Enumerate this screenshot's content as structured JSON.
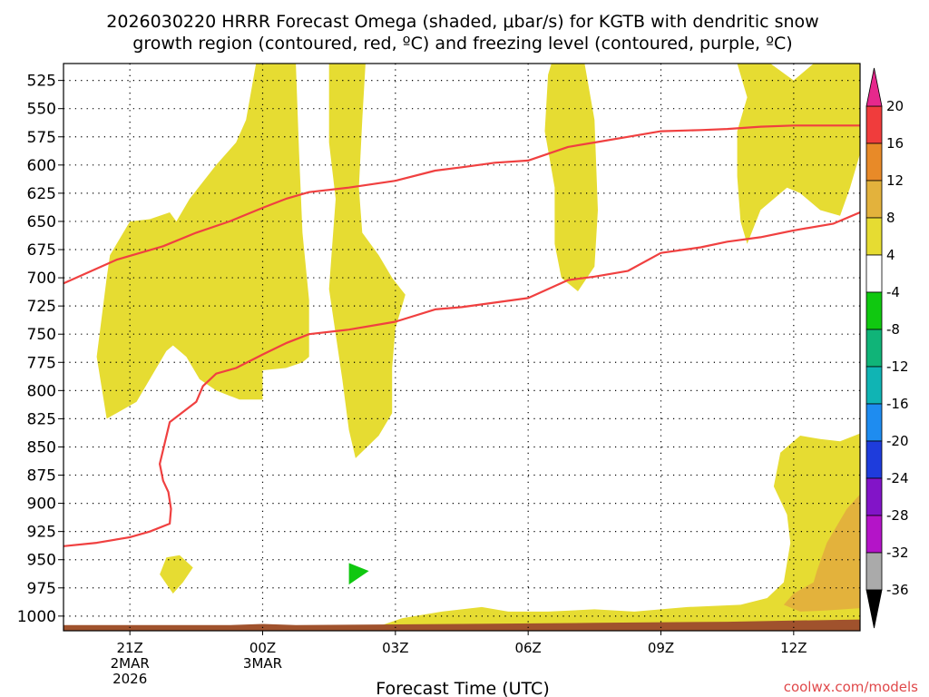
{
  "chart_data": {
    "type": "heatmap",
    "title_lines": [
      "2026030220 HRRR Forecast Omega (shaded, μbar/s) for KGTB with dendritic snow",
      "growth region (contoured, red, ºC) and freezing level (contoured, purple, ºC)"
    ],
    "xlabel": "Forecast Time (UTC)",
    "ylabel": "",
    "credit": "coolwx.com/models",
    "x_domain_hours": [
      -1.0,
      11.0
    ],
    "x_ticks": [
      {
        "hour": 0,
        "lines": [
          "21Z",
          "2MAR",
          "2026"
        ]
      },
      {
        "hour": 2,
        "lines": [
          "00Z",
          "3MAR"
        ]
      },
      {
        "hour": 4,
        "lines": [
          "03Z"
        ]
      },
      {
        "hour": 6,
        "lines": [
          "06Z"
        ]
      },
      {
        "hour": 8,
        "lines": [
          "09Z"
        ]
      },
      {
        "hour": 10,
        "lines": [
          "12Z"
        ]
      }
    ],
    "y_domain_hpa": [
      510,
      1013
    ],
    "y_ticks": [
      525,
      550,
      575,
      600,
      625,
      650,
      675,
      700,
      725,
      750,
      775,
      800,
      825,
      850,
      875,
      900,
      925,
      950,
      975,
      1000
    ],
    "grid": true,
    "colorbar": {
      "placement": "right",
      "labels": [
        "20",
        "16",
        "12",
        "8",
        "4",
        "-4",
        "-8",
        "-12",
        "-16",
        "-20",
        "-24",
        "-28",
        "-32",
        "-36"
      ],
      "bins": [
        {
          "from": 16,
          "to": 20,
          "color": "#f03c3c"
        },
        {
          "from": 12,
          "to": 16,
          "color": "#e88a28"
        },
        {
          "from": 8,
          "to": 12,
          "color": "#e3b23c"
        },
        {
          "from": 4,
          "to": 8,
          "color": "#e6dc32"
        },
        {
          "from": -4,
          "to": 4,
          "color": "#ffffff"
        },
        {
          "from": -8,
          "to": -4,
          "color": "#10c810"
        },
        {
          "from": -12,
          "to": -8,
          "color": "#10b478"
        },
        {
          "from": -16,
          "to": -12,
          "color": "#10b4b4"
        },
        {
          "from": -20,
          "to": -16,
          "color": "#1e8cf0"
        },
        {
          "from": -24,
          "to": -20,
          "color": "#1e3cdc"
        },
        {
          "from": -28,
          "to": -24,
          "color": "#8214c8"
        },
        {
          "from": -32,
          "to": -28,
          "color": "#b414c8"
        },
        {
          "from": -36,
          "to": -32,
          "color": "#aaaaaa"
        }
      ],
      "top_extend_color": "#e6288c",
      "bottom_extend_color": "#000000"
    },
    "series": [
      {
        "kind": "contour-line",
        "color": "#f04040",
        "points": [
          [
            -1.0,
            705
          ],
          [
            -0.2,
            684
          ],
          [
            0.5,
            672
          ],
          [
            1.0,
            660
          ],
          [
            1.5,
            650
          ],
          [
            2.0,
            638
          ],
          [
            2.35,
            630
          ],
          [
            2.7,
            624
          ],
          [
            3.3,
            620
          ],
          [
            4.0,
            614
          ],
          [
            4.6,
            605
          ],
          [
            5.0,
            602
          ],
          [
            5.5,
            598
          ],
          [
            6.0,
            596
          ],
          [
            6.6,
            584
          ],
          [
            7.0,
            580
          ],
          [
            7.5,
            575
          ],
          [
            8.0,
            570
          ],
          [
            8.6,
            569
          ],
          [
            9.0,
            568
          ],
          [
            9.5,
            566
          ],
          [
            10.0,
            565
          ],
          [
            10.6,
            565
          ],
          [
            11.0,
            565
          ]
        ]
      },
      {
        "kind": "contour-line",
        "color": "#f04040",
        "points": [
          [
            -1.0,
            938
          ],
          [
            -0.5,
            935
          ],
          [
            0.0,
            930
          ],
          [
            0.3,
            925
          ],
          [
            0.6,
            918
          ],
          [
            0.62,
            905
          ],
          [
            0.58,
            890
          ],
          [
            0.5,
            880
          ],
          [
            0.45,
            865
          ],
          [
            0.6,
            828
          ],
          [
            1.0,
            810
          ],
          [
            1.1,
            796
          ],
          [
            1.3,
            785
          ],
          [
            1.6,
            780
          ],
          [
            2.0,
            768
          ],
          [
            2.35,
            758
          ],
          [
            2.7,
            750
          ],
          [
            3.3,
            746
          ],
          [
            4.0,
            739
          ],
          [
            4.6,
            728
          ],
          [
            5.0,
            726
          ],
          [
            5.5,
            722
          ],
          [
            6.0,
            718
          ],
          [
            6.6,
            702
          ],
          [
            7.0,
            699
          ],
          [
            7.5,
            694
          ],
          [
            8.0,
            678
          ],
          [
            8.6,
            673
          ],
          [
            9.0,
            668
          ],
          [
            9.5,
            664
          ],
          [
            10.0,
            658
          ],
          [
            10.6,
            652
          ],
          [
            11.0,
            642
          ]
        ]
      }
    ],
    "regions": [
      {
        "omega_bin": "4 to 8",
        "color": "#e6dc32",
        "points": [
          [
            -0.35,
            825
          ],
          [
            -0.5,
            770
          ],
          [
            -0.35,
            700
          ],
          [
            -0.3,
            680
          ],
          [
            -0.0,
            650
          ],
          [
            0.3,
            648
          ],
          [
            0.6,
            642
          ],
          [
            0.7,
            650
          ],
          [
            0.9,
            630
          ],
          [
            1.3,
            600
          ],
          [
            1.6,
            580
          ],
          [
            1.75,
            560
          ],
          [
            1.9,
            505
          ],
          [
            2.5,
            505
          ],
          [
            2.55,
            590
          ],
          [
            2.6,
            660
          ],
          [
            2.7,
            720
          ],
          [
            2.7,
            770
          ],
          [
            2.6,
            775
          ],
          [
            2.35,
            780
          ],
          [
            2.0,
            782
          ],
          [
            2.0,
            808
          ],
          [
            1.65,
            808
          ],
          [
            1.3,
            800
          ],
          [
            1.05,
            790
          ],
          [
            0.85,
            770
          ],
          [
            0.65,
            760
          ],
          [
            0.55,
            765
          ],
          [
            0.3,
            790
          ],
          [
            0.1,
            810
          ]
        ]
      },
      {
        "omega_bin": "4 to 8",
        "color": "#e6dc32",
        "points": [
          [
            3.0,
            505
          ],
          [
            3.55,
            505
          ],
          [
            3.5,
            560
          ],
          [
            3.45,
            620
          ],
          [
            3.5,
            660
          ],
          [
            3.75,
            680
          ],
          [
            3.95,
            700
          ],
          [
            4.15,
            715
          ],
          [
            4.0,
            745
          ],
          [
            3.95,
            780
          ],
          [
            3.95,
            820
          ],
          [
            3.75,
            840
          ],
          [
            3.4,
            860
          ],
          [
            3.3,
            835
          ],
          [
            3.2,
            790
          ],
          [
            3.1,
            750
          ],
          [
            3.0,
            710
          ],
          [
            3.05,
            670
          ],
          [
            3.1,
            630
          ],
          [
            3.0,
            580
          ]
        ]
      },
      {
        "omega_bin": "4 to 8",
        "color": "#e6dc32",
        "points": [
          [
            6.35,
            505
          ],
          [
            6.85,
            505
          ],
          [
            7.0,
            560
          ],
          [
            7.05,
            640
          ],
          [
            7.0,
            690
          ],
          [
            6.75,
            712
          ],
          [
            6.5,
            700
          ],
          [
            6.4,
            670
          ],
          [
            6.4,
            620
          ],
          [
            6.25,
            570
          ],
          [
            6.3,
            520
          ]
        ]
      },
      {
        "omega_bin": "4 to 8",
        "color": "#e6dc32",
        "points": [
          [
            9.15,
            505
          ],
          [
            9.65,
            505
          ],
          [
            10.0,
            525
          ],
          [
            10.3,
            505
          ],
          [
            11.0,
            505
          ],
          [
            11.0,
            590
          ],
          [
            10.85,
            620
          ],
          [
            10.7,
            645
          ],
          [
            10.4,
            640
          ],
          [
            10.1,
            625
          ],
          [
            9.9,
            620
          ],
          [
            9.5,
            640
          ],
          [
            9.3,
            670
          ],
          [
            9.2,
            650
          ],
          [
            9.15,
            610
          ],
          [
            9.15,
            570
          ],
          [
            9.3,
            540
          ]
        ]
      },
      {
        "omega_bin": "4 to 8",
        "color": "#e6dc32",
        "points": [
          [
            9.7,
            885
          ],
          [
            9.8,
            855
          ],
          [
            10.1,
            840
          ],
          [
            10.4,
            843
          ],
          [
            10.7,
            845
          ],
          [
            11.0,
            838
          ],
          [
            11.0,
            1008
          ],
          [
            3.8,
            1008
          ],
          [
            4.1,
            1002
          ],
          [
            4.7,
            996
          ],
          [
            5.3,
            992
          ],
          [
            5.7,
            996
          ],
          [
            6.3,
            996
          ],
          [
            7.0,
            994
          ],
          [
            7.6,
            996
          ],
          [
            8.4,
            992
          ],
          [
            9.2,
            990
          ],
          [
            9.6,
            984
          ],
          [
            9.85,
            970
          ],
          [
            9.95,
            935
          ],
          [
            9.9,
            910
          ]
        ]
      },
      {
        "omega_bin": "8 to 12",
        "color": "#e3b23c",
        "points": [
          [
            10.35,
            960
          ],
          [
            10.5,
            935
          ],
          [
            10.8,
            905
          ],
          [
            11.0,
            892
          ],
          [
            11.0,
            993
          ],
          [
            10.5,
            995
          ],
          [
            10.1,
            996
          ],
          [
            9.85,
            990
          ],
          [
            10.0,
            980
          ],
          [
            10.3,
            970
          ]
        ]
      },
      {
        "omega_bin": "4 to 8",
        "color": "#e6dc32",
        "points": [
          [
            0.45,
            963
          ],
          [
            0.55,
            948
          ],
          [
            0.75,
            946
          ],
          [
            0.95,
            957
          ],
          [
            0.8,
            970
          ],
          [
            0.65,
            980
          ]
        ]
      },
      {
        "omega_bin": "-8 to -4",
        "color": "#10c810",
        "points": [
          [
            3.3,
            972
          ],
          [
            3.3,
            953
          ],
          [
            3.6,
            960
          ]
        ]
      },
      {
        "omega_bin": "terrain",
        "color": "#a0522d",
        "points": [
          [
            -1.0,
            1008
          ],
          [
            1.5,
            1008
          ],
          [
            2.0,
            1007
          ],
          [
            2.5,
            1008
          ],
          [
            5.0,
            1007
          ],
          [
            7.0,
            1006
          ],
          [
            9.0,
            1005
          ],
          [
            10.0,
            1004
          ],
          [
            11.0,
            1003
          ],
          [
            11.0,
            1014
          ],
          [
            -1.0,
            1014
          ]
        ]
      }
    ]
  }
}
